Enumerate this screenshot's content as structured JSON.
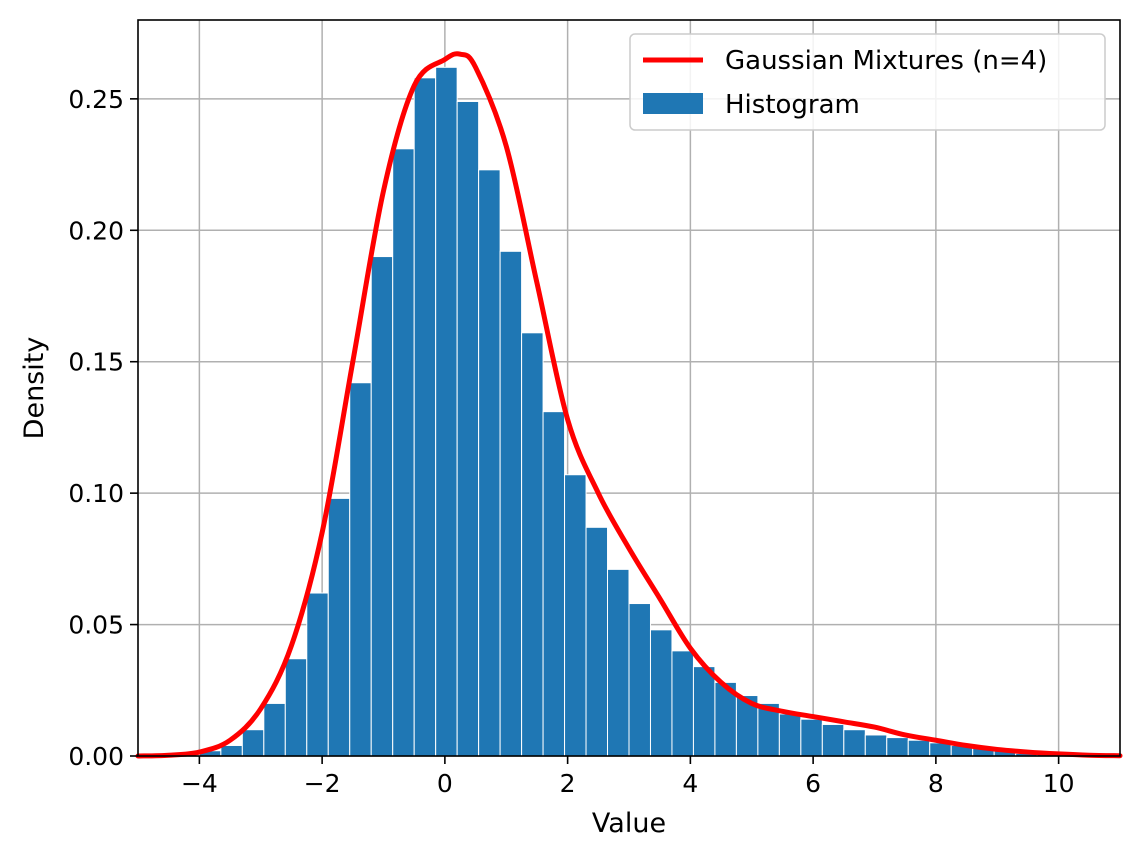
{
  "chart_data": {
    "type": "histogram",
    "title": "",
    "xlabel": "Value",
    "ylabel": "Density",
    "xlim": [
      -5,
      11
    ],
    "ylim": [
      0,
      0.28
    ],
    "x_ticks": [
      -4,
      -2,
      0,
      2,
      4,
      6,
      8,
      10
    ],
    "x_tick_labels": [
      "−4",
      "−2",
      "0",
      "2",
      "4",
      "6",
      "8",
      "10"
    ],
    "y_ticks": [
      0.0,
      0.05,
      0.1,
      0.15,
      0.2,
      0.25
    ],
    "y_tick_labels": [
      "0.00",
      "0.05",
      "0.10",
      "0.15",
      "0.20",
      "0.25"
    ],
    "grid": true,
    "legend_position": "top-right",
    "histogram": {
      "name": "Histogram",
      "color": "#1f77b4",
      "bin_start": -4.0,
      "bin_width": 0.35,
      "densities": [
        0.002,
        0.004,
        0.01,
        0.02,
        0.037,
        0.062,
        0.098,
        0.142,
        0.19,
        0.231,
        0.258,
        0.262,
        0.249,
        0.223,
        0.192,
        0.161,
        0.131,
        0.107,
        0.087,
        0.071,
        0.058,
        0.048,
        0.04,
        0.034,
        0.028,
        0.023,
        0.02,
        0.016,
        0.014,
        0.012,
        0.01,
        0.008,
        0.007,
        0.006,
        0.005,
        0.004,
        0.003,
        0.002,
        0.001,
        0.001
      ]
    },
    "curve": {
      "name": "Gaussian Mixtures (n=4)",
      "color": "#ff0000",
      "x": [
        -5.0,
        -4.5,
        -4.0,
        -3.5,
        -3.0,
        -2.5,
        -2.0,
        -1.5,
        -1.0,
        -0.5,
        0.0,
        0.25,
        0.5,
        1.0,
        1.5,
        2.0,
        2.5,
        3.0,
        3.5,
        4.0,
        4.5,
        5.0,
        5.5,
        6.0,
        6.5,
        7.0,
        7.5,
        8.0,
        8.5,
        9.0,
        9.5,
        10.0,
        10.5,
        11.0
      ],
      "y": [
        0.0,
        0.0003,
        0.0015,
        0.006,
        0.018,
        0.042,
        0.085,
        0.15,
        0.215,
        0.255,
        0.265,
        0.267,
        0.262,
        0.232,
        0.18,
        0.128,
        0.1,
        0.079,
        0.06,
        0.041,
        0.028,
        0.02,
        0.017,
        0.015,
        0.013,
        0.011,
        0.008,
        0.006,
        0.004,
        0.0025,
        0.0015,
        0.0008,
        0.0003,
        0.0001
      ]
    }
  }
}
